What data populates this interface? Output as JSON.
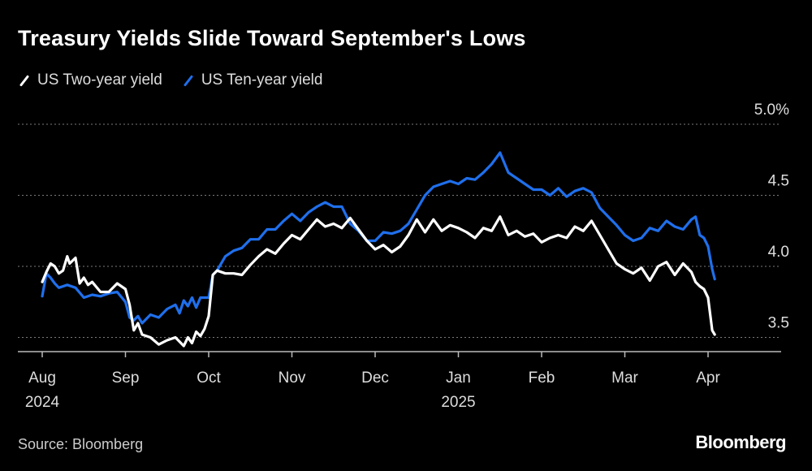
{
  "title": "Treasury Yields Slide Toward September's Lows",
  "source": "Source: Bloomberg",
  "brand": "Bloomberg",
  "colors": {
    "two_year": "#ffffff",
    "ten_year": "#1f6fec",
    "grid": "#7a7a7a",
    "axis": "#bbbbbb"
  },
  "chart_data": {
    "type": "line",
    "title": "Treasury Yields Slide Toward September's Lows",
    "xlabel": "",
    "ylabel": "",
    "ylim": [
      3.4,
      5.0
    ],
    "yticks": [
      {
        "value": 5.0,
        "label": "5.0%"
      },
      {
        "value": 4.5,
        "label": "4.5"
      },
      {
        "value": 4.0,
        "label": "4.0"
      },
      {
        "value": 3.5,
        "label": "3.5"
      }
    ],
    "xlim": [
      0,
      8.7
    ],
    "xticks": [
      {
        "pos": 0,
        "label": "Aug",
        "year": "2024"
      },
      {
        "pos": 1,
        "label": "Sep",
        "year": ""
      },
      {
        "pos": 2,
        "label": "Oct",
        "year": ""
      },
      {
        "pos": 3,
        "label": "Nov",
        "year": ""
      },
      {
        "pos": 4,
        "label": "Dec",
        "year": ""
      },
      {
        "pos": 5,
        "label": "Jan",
        "year": "2025"
      },
      {
        "pos": 6,
        "label": "Feb",
        "year": ""
      },
      {
        "pos": 7,
        "label": "Mar",
        "year": ""
      },
      {
        "pos": 8,
        "label": "Apr",
        "year": ""
      }
    ],
    "legend_position": "top-left",
    "series": [
      {
        "name": "US Two-year yield",
        "x": [
          0.0,
          0.05,
          0.1,
          0.15,
          0.2,
          0.25,
          0.3,
          0.33,
          0.4,
          0.45,
          0.5,
          0.55,
          0.6,
          0.7,
          0.8,
          0.9,
          1.0,
          1.05,
          1.1,
          1.15,
          1.2,
          1.3,
          1.4,
          1.5,
          1.6,
          1.7,
          1.75,
          1.8,
          1.85,
          1.9,
          1.95,
          2.0,
          2.05,
          2.1,
          2.2,
          2.3,
          2.4,
          2.5,
          2.6,
          2.7,
          2.8,
          2.9,
          3.0,
          3.1,
          3.2,
          3.3,
          3.4,
          3.5,
          3.6,
          3.7,
          3.8,
          3.9,
          4.0,
          4.1,
          4.2,
          4.3,
          4.4,
          4.5,
          4.6,
          4.7,
          4.8,
          4.9,
          5.0,
          5.1,
          5.2,
          5.3,
          5.4,
          5.5,
          5.6,
          5.7,
          5.8,
          5.9,
          6.0,
          6.1,
          6.2,
          6.3,
          6.4,
          6.5,
          6.6,
          6.7,
          6.8,
          6.9,
          7.0,
          7.1,
          7.2,
          7.3,
          7.4,
          7.5,
          7.6,
          7.7,
          7.8,
          7.85,
          7.9,
          7.95,
          8.0,
          8.05,
          8.08
        ],
        "values": [
          3.89,
          3.96,
          4.02,
          4.0,
          3.95,
          3.97,
          4.07,
          4.02,
          4.06,
          3.88,
          3.92,
          3.87,
          3.89,
          3.82,
          3.82,
          3.88,
          3.84,
          3.73,
          3.55,
          3.6,
          3.52,
          3.5,
          3.45,
          3.48,
          3.5,
          3.44,
          3.5,
          3.46,
          3.54,
          3.51,
          3.56,
          3.65,
          3.94,
          3.97,
          3.95,
          3.95,
          3.94,
          4.01,
          4.07,
          4.12,
          4.09,
          4.16,
          4.22,
          4.19,
          4.26,
          4.33,
          4.28,
          4.3,
          4.27,
          4.34,
          4.26,
          4.18,
          4.12,
          4.15,
          4.1,
          4.14,
          4.22,
          4.33,
          4.24,
          4.33,
          4.25,
          4.29,
          4.27,
          4.24,
          4.2,
          4.27,
          4.25,
          4.35,
          4.22,
          4.25,
          4.21,
          4.23,
          4.17,
          4.2,
          4.22,
          4.2,
          4.28,
          4.25,
          4.32,
          4.22,
          4.12,
          4.02,
          3.98,
          3.95,
          3.99,
          3.9,
          4.0,
          4.03,
          3.94,
          4.02,
          3.96,
          3.89,
          3.86,
          3.84,
          3.78,
          3.55,
          3.52
        ]
      },
      {
        "name": "US Ten-year yield",
        "x": [
          0.0,
          0.05,
          0.1,
          0.15,
          0.2,
          0.3,
          0.4,
          0.5,
          0.6,
          0.7,
          0.8,
          0.9,
          1.0,
          1.05,
          1.1,
          1.15,
          1.2,
          1.3,
          1.4,
          1.5,
          1.6,
          1.65,
          1.7,
          1.75,
          1.8,
          1.85,
          1.9,
          2.0,
          2.05,
          2.1,
          2.2,
          2.3,
          2.4,
          2.5,
          2.6,
          2.7,
          2.8,
          2.9,
          3.0,
          3.1,
          3.2,
          3.3,
          3.4,
          3.5,
          3.6,
          3.7,
          3.8,
          3.9,
          4.0,
          4.1,
          4.2,
          4.3,
          4.4,
          4.5,
          4.6,
          4.7,
          4.8,
          4.9,
          5.0,
          5.1,
          5.2,
          5.3,
          5.4,
          5.5,
          5.6,
          5.7,
          5.8,
          5.9,
          6.0,
          6.1,
          6.2,
          6.3,
          6.4,
          6.5,
          6.6,
          6.7,
          6.8,
          6.9,
          7.0,
          7.1,
          7.2,
          7.3,
          7.4,
          7.5,
          7.6,
          7.7,
          7.8,
          7.85,
          7.9,
          7.95,
          8.0,
          8.05,
          8.08
        ],
        "values": [
          3.79,
          3.95,
          3.92,
          3.88,
          3.85,
          3.87,
          3.85,
          3.78,
          3.8,
          3.79,
          3.81,
          3.82,
          3.75,
          3.64,
          3.62,
          3.65,
          3.6,
          3.66,
          3.64,
          3.7,
          3.73,
          3.67,
          3.76,
          3.72,
          3.78,
          3.71,
          3.78,
          3.78,
          3.94,
          3.97,
          4.07,
          4.11,
          4.13,
          4.19,
          4.19,
          4.26,
          4.26,
          4.32,
          4.37,
          4.32,
          4.38,
          4.42,
          4.45,
          4.42,
          4.42,
          4.3,
          4.25,
          4.18,
          4.18,
          4.24,
          4.23,
          4.25,
          4.3,
          4.4,
          4.5,
          4.56,
          4.58,
          4.6,
          4.58,
          4.62,
          4.61,
          4.66,
          4.72,
          4.8,
          4.66,
          4.62,
          4.58,
          4.54,
          4.54,
          4.5,
          4.55,
          4.49,
          4.53,
          4.55,
          4.52,
          4.41,
          4.35,
          4.29,
          4.22,
          4.18,
          4.2,
          4.27,
          4.25,
          4.32,
          4.28,
          4.26,
          4.33,
          4.35,
          4.22,
          4.2,
          4.14,
          3.98,
          3.91
        ]
      }
    ]
  }
}
